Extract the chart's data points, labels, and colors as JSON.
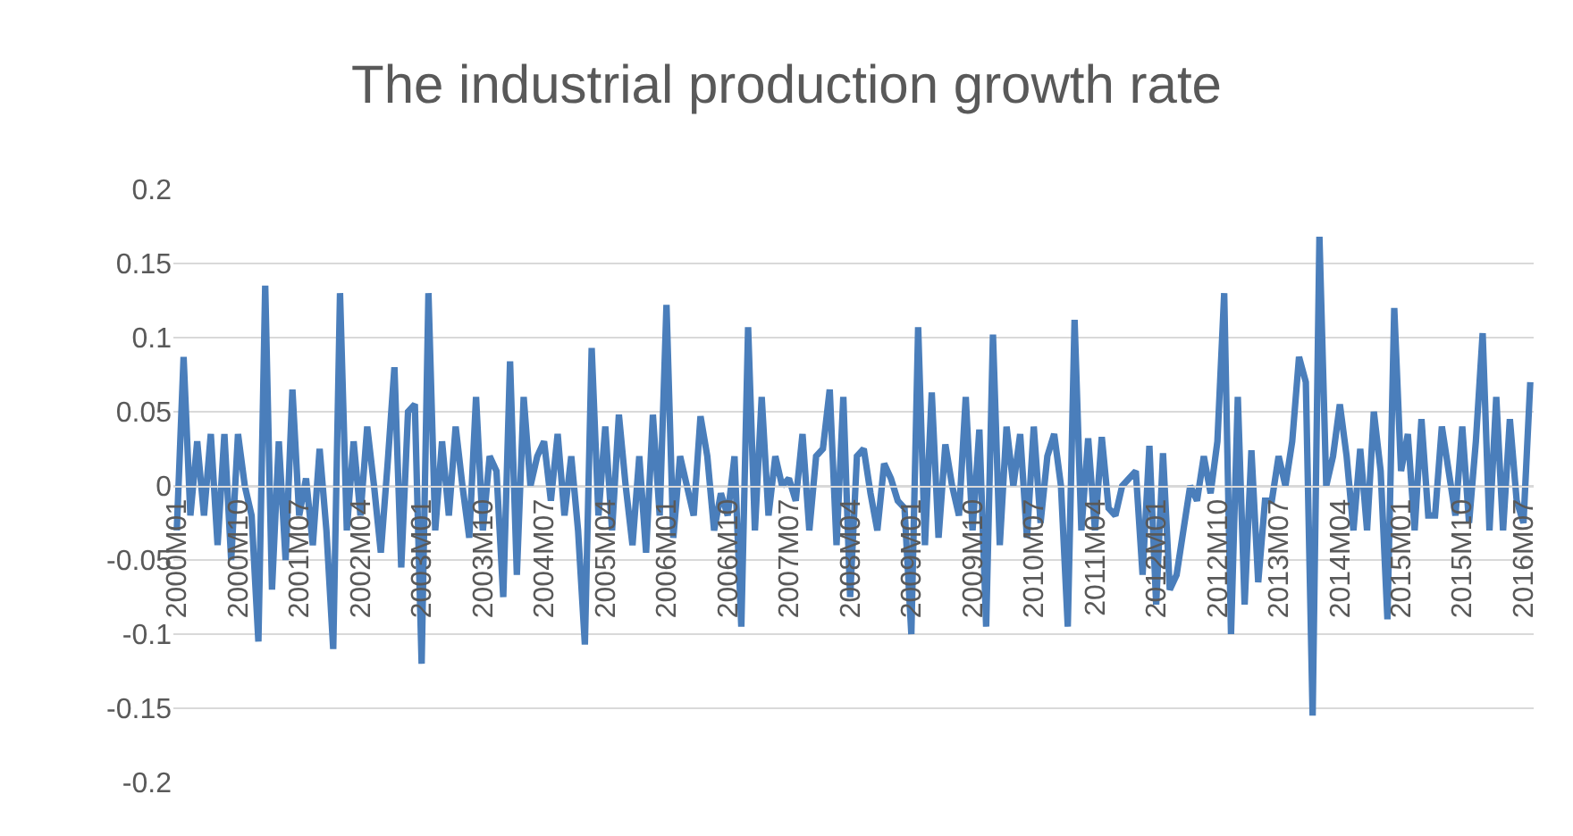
{
  "chart_data": {
    "type": "line",
    "title": "The industrial production growth rate",
    "categories": [
      "2000M01",
      null,
      null,
      null,
      null,
      null,
      null,
      null,
      null,
      "2000M10",
      null,
      null,
      null,
      null,
      null,
      null,
      null,
      null,
      "2001M07",
      null,
      null,
      null,
      null,
      null,
      null,
      null,
      null,
      "2002M04",
      null,
      null,
      null,
      null,
      null,
      null,
      null,
      null,
      "2003M01",
      null,
      null,
      null,
      null,
      null,
      null,
      null,
      null,
      "2003M10",
      null,
      null,
      null,
      null,
      null,
      null,
      null,
      null,
      "2004M07",
      null,
      null,
      null,
      null,
      null,
      null,
      null,
      null,
      "2005M04",
      null,
      null,
      null,
      null,
      null,
      null,
      null,
      null,
      "2006M01",
      null,
      null,
      null,
      null,
      null,
      null,
      null,
      null,
      "2006M10",
      null,
      null,
      null,
      null,
      null,
      null,
      null,
      null,
      "2007M07",
      null,
      null,
      null,
      null,
      null,
      null,
      null,
      null,
      "2008M04",
      null,
      null,
      null,
      null,
      null,
      null,
      null,
      null,
      "2009M01",
      null,
      null,
      null,
      null,
      null,
      null,
      null,
      null,
      "2009M10",
      null,
      null,
      null,
      null,
      null,
      null,
      null,
      null,
      "2010M07",
      null,
      null,
      null,
      null,
      null,
      null,
      null,
      null,
      "2011M04",
      null,
      null,
      null,
      null,
      null,
      null,
      null,
      null,
      "2012M01",
      null,
      null,
      null,
      null,
      null,
      null,
      null,
      null,
      "2012M10",
      null,
      null,
      null,
      null,
      null,
      null,
      null,
      null,
      "2013M07",
      null,
      null,
      null,
      null,
      null,
      null,
      null,
      null,
      "2014M04",
      null,
      null,
      null,
      null,
      null,
      null,
      null,
      null,
      "2015M01",
      null,
      null,
      null,
      null,
      null,
      null,
      null,
      null,
      "2015M10",
      null,
      null,
      null,
      null,
      null,
      null,
      null,
      null,
      "2016M07",
      null
    ],
    "series": [
      {
        "color": "#4a7ebb",
        "values": [
          -0.03,
          0.087,
          -0.02,
          0.03,
          -0.02,
          0.035,
          -0.04,
          0.035,
          -0.05,
          0.035,
          0.0,
          -0.02,
          -0.105,
          0.135,
          -0.07,
          0.03,
          -0.05,
          0.065,
          -0.02,
          0.005,
          -0.04,
          0.025,
          -0.03,
          -0.11,
          0.13,
          -0.03,
          0.03,
          -0.02,
          0.04,
          0.0,
          -0.045,
          0.015,
          0.08,
          -0.055,
          0.05,
          0.055,
          -0.12,
          0.13,
          -0.03,
          0.03,
          -0.02,
          0.04,
          0.0,
          -0.035,
          0.06,
          -0.03,
          0.02,
          0.01,
          -0.075,
          0.084,
          -0.06,
          0.06,
          0.0,
          0.02,
          0.03,
          -0.01,
          0.035,
          -0.02,
          0.02,
          -0.03,
          -0.107,
          0.093,
          -0.02,
          0.04,
          -0.03,
          0.048,
          0.0,
          -0.04,
          0.02,
          -0.045,
          0.048,
          -0.02,
          0.122,
          -0.035,
          0.02,
          0.0,
          -0.02,
          0.047,
          0.02,
          -0.03,
          -0.005,
          -0.02,
          0.02,
          -0.095,
          0.107,
          -0.03,
          0.06,
          -0.02,
          0.02,
          0.0,
          0.005,
          -0.01,
          0.035,
          -0.03,
          0.02,
          0.025,
          0.065,
          -0.04,
          0.06,
          -0.075,
          0.02,
          0.025,
          -0.005,
          -0.03,
          0.015,
          0.005,
          -0.01,
          -0.015,
          -0.1,
          0.107,
          -0.04,
          0.063,
          -0.035,
          0.028,
          0.0,
          -0.02,
          0.06,
          -0.03,
          0.038,
          -0.095,
          0.102,
          -0.04,
          0.04,
          0.0,
          0.035,
          -0.035,
          0.04,
          -0.025,
          0.02,
          0.035,
          0.0,
          -0.095,
          0.112,
          -0.03,
          0.032,
          -0.03,
          0.033,
          -0.015,
          -0.02,
          0.0,
          0.005,
          0.01,
          -0.06,
          0.027,
          -0.08,
          0.022,
          -0.07,
          -0.06,
          -0.03,
          0.0,
          -0.01,
          0.02,
          -0.005,
          0.03,
          0.13,
          -0.1,
          0.06,
          -0.08,
          0.024,
          -0.065,
          -0.01,
          -0.01,
          0.02,
          0.0,
          0.03,
          0.087,
          0.07,
          -0.155,
          0.168,
          0.0,
          0.02,
          0.055,
          0.02,
          -0.03,
          0.025,
          -0.03,
          0.05,
          0.01,
          -0.09,
          0.12,
          0.01,
          0.035,
          -0.03,
          0.045,
          -0.02,
          -0.02,
          0.04,
          0.01,
          -0.02,
          0.04,
          -0.025,
          0.03,
          0.103,
          -0.03,
          0.06,
          -0.03,
          0.045,
          -0.01,
          -0.025,
          0.07
        ]
      }
    ],
    "ylim": [
      -0.2,
      0.2
    ],
    "yticks": [
      -0.2,
      -0.15,
      -0.1,
      -0.05,
      0,
      0.05,
      0.1,
      0.15,
      0.2
    ],
    "grid": "y",
    "marker": "none",
    "line_style": "solid"
  }
}
